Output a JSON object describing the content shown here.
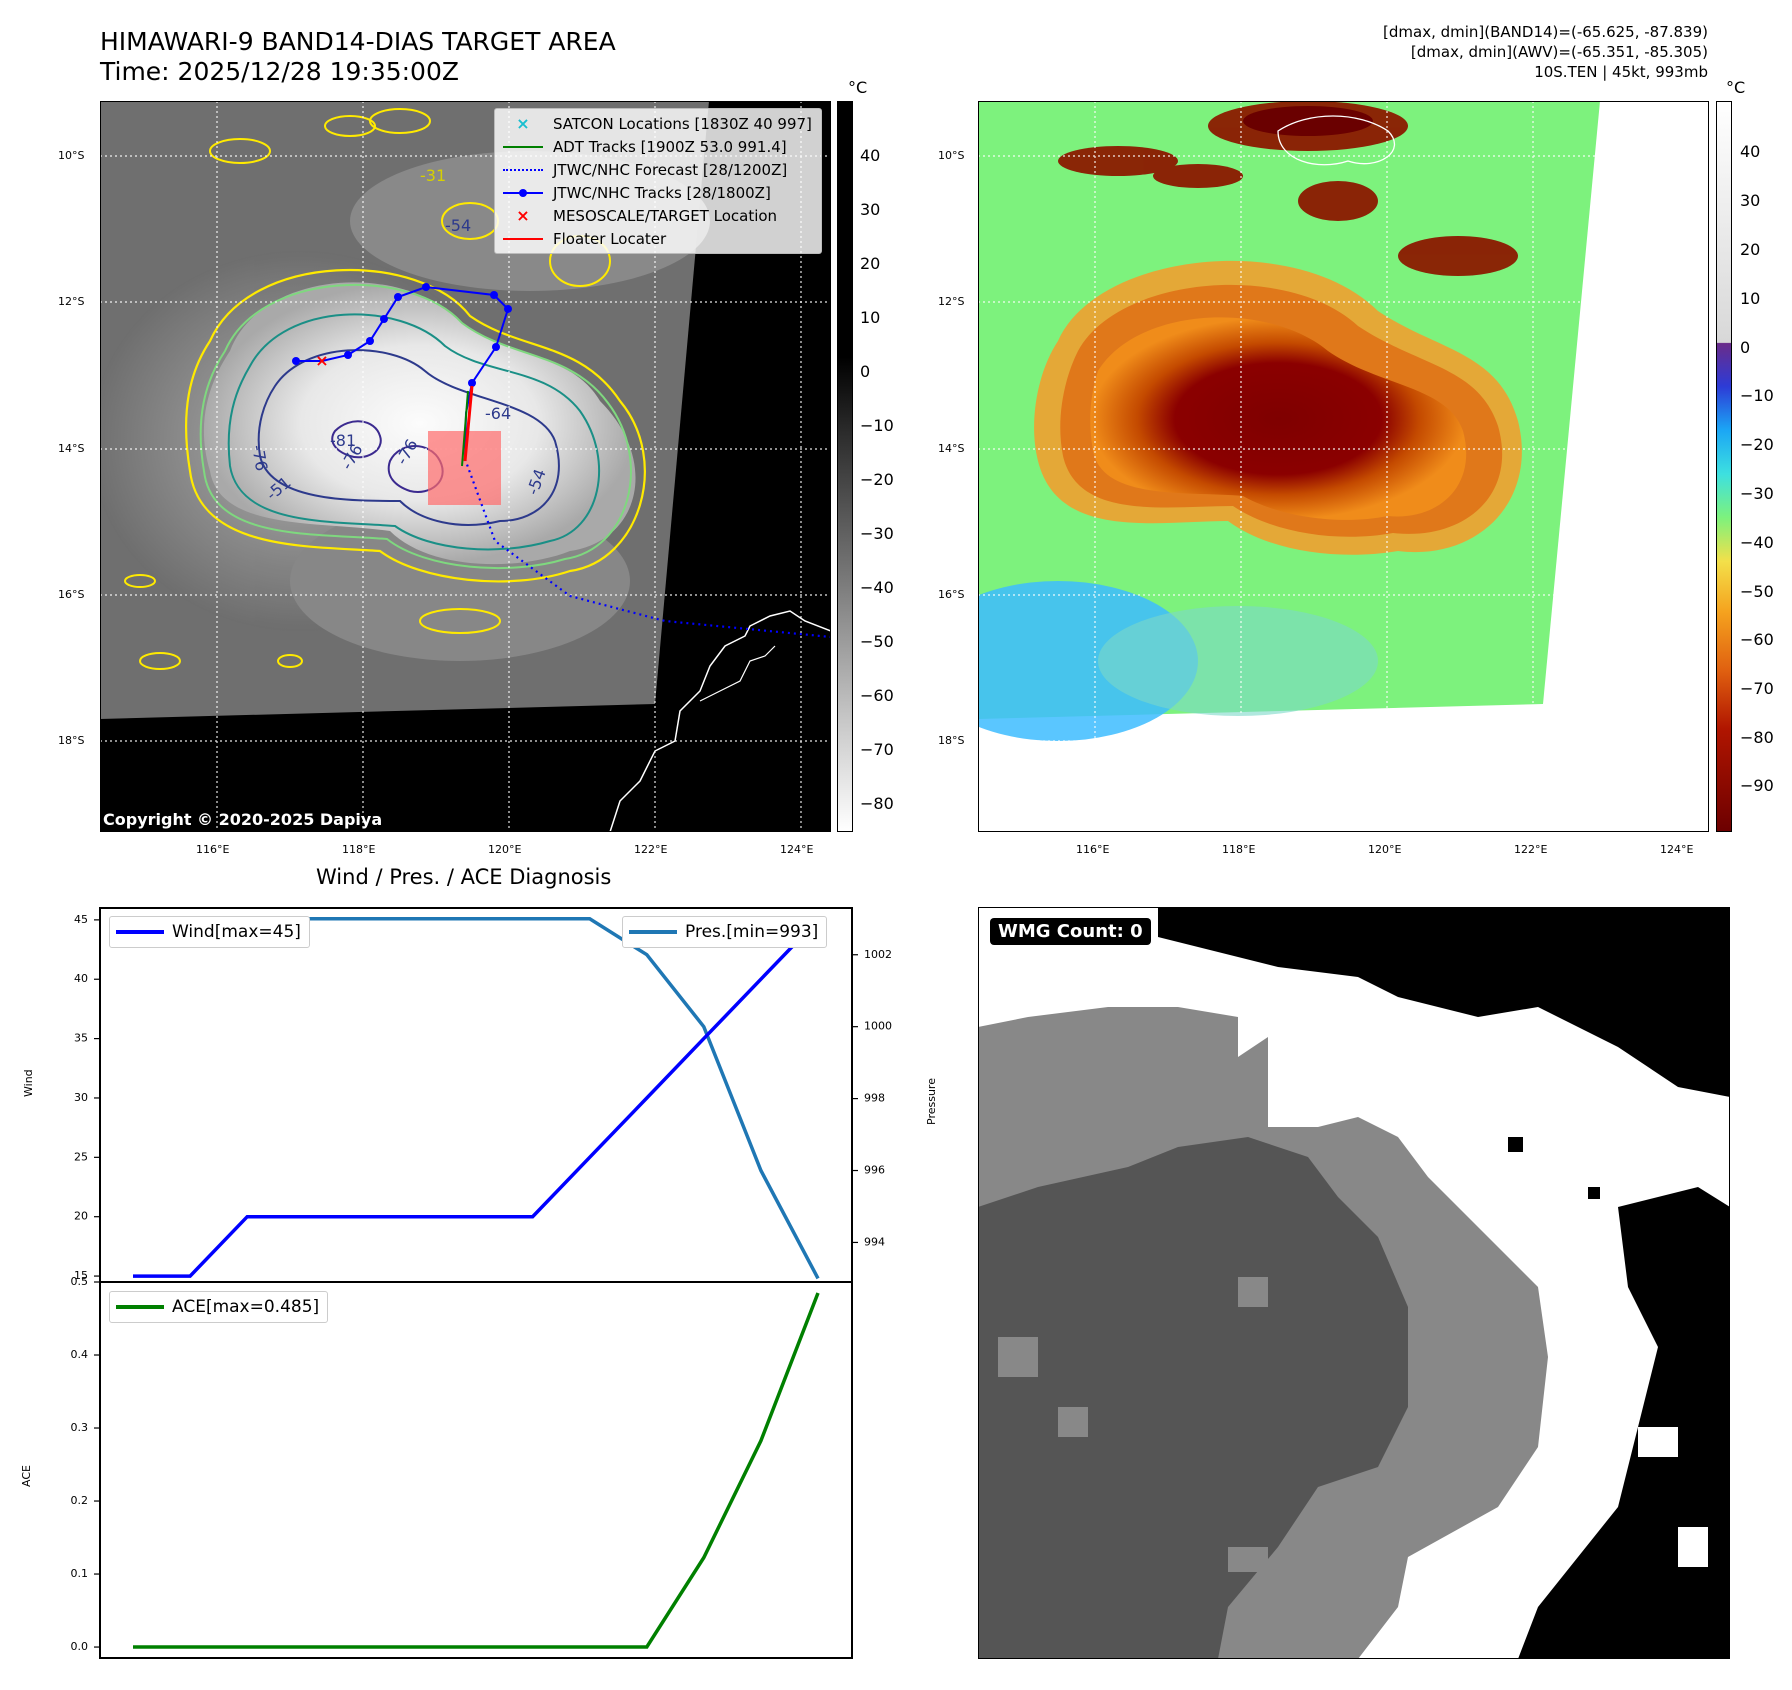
{
  "header": {
    "title": "HIMAWARI-9 BAND14-DIAS TARGET AREA",
    "time": "Time: 2025/12/28 19:35:00Z",
    "dmax_band14": "[dmax, dmin](BAND14)=(-65.625, -87.839)",
    "dmax_awv": "[dmax, dmin](AWV)=(-65.351, -85.305)",
    "storm": "10S.TEN | 45kt, 993mb"
  },
  "map_axes": {
    "lat_labels": [
      "10°S",
      "12°S",
      "14°S",
      "16°S",
      "18°S"
    ],
    "lon_labels": [
      "116°E",
      "118°E",
      "120°E",
      "122°E",
      "124°E"
    ]
  },
  "ir_panel": {
    "legend": [
      {
        "label": "SATCON Locations [1830Z 40 997]",
        "marker": "x",
        "color": "#17becf"
      },
      {
        "label": "ADT Tracks [1900Z 53.0 991.4]",
        "marker": "line",
        "color": "#008000"
      },
      {
        "label": "JTWC/NHC Forecast [28/1200Z]",
        "marker": "dotted",
        "color": "#0000ff"
      },
      {
        "label": "JTWC/NHC Tracks [28/1800Z]",
        "marker": "line-dot",
        "color": "#0000ff"
      },
      {
        "label": "MESOSCALE/TARGET Location",
        "marker": "x",
        "color": "#ff0000"
      },
      {
        "label": "Floater Locater",
        "marker": "line",
        "color": "#ff0000"
      }
    ],
    "contour_labels": [
      "-76",
      "-81",
      "-76",
      "-76",
      "-64",
      "-54",
      "-31",
      "-54",
      "-51"
    ],
    "copyright": "Copyright © 2020-2025 Dapiya",
    "colorbar_unit": "°C",
    "colorbar_ticks": [
      "40",
      "30",
      "20",
      "10",
      "0",
      "−10",
      "−20",
      "−30",
      "−40",
      "−50",
      "−60",
      "−70",
      "−80"
    ]
  },
  "awv_panel": {
    "colorbar_unit": "°C",
    "colorbar_ticks": [
      "40",
      "30",
      "20",
      "10",
      "0",
      "−10",
      "−20",
      "−30",
      "−40",
      "−50",
      "−60",
      "−70",
      "−80",
      "−90"
    ]
  },
  "diagnosis": {
    "title": "Wind / Pres. / ACE Diagnosis",
    "wind_legend": "Wind[max=45]",
    "pres_legend": "Pres.[min=993]",
    "ace_legend": "ACE[max=0.485]",
    "wind_ylabel": "Wind",
    "pres_ylabel": "Pressure",
    "ace_ylabel": "ACE",
    "colors": {
      "wind": "#0000ff",
      "pressure": "#1f77b4",
      "ace": "#008000"
    }
  },
  "wmg": {
    "badge": "WMG Count: 0"
  },
  "chart_data": [
    {
      "type": "line",
      "title": "Wind / Pres. / ACE Diagnosis",
      "x": [
        0,
        1,
        2,
        3,
        4,
        5,
        6,
        7,
        8,
        9,
        10,
        11,
        12
      ],
      "series": [
        {
          "name": "Wind",
          "axis": "left",
          "values": [
            15,
            15,
            20,
            20,
            20,
            20,
            20,
            20,
            25,
            30,
            35,
            40,
            45
          ]
        },
        {
          "name": "Pressure",
          "axis": "right",
          "values": [
            1003,
            1003,
            1003,
            1003,
            1003,
            1003,
            1003,
            1003,
            1003,
            1002,
            1000,
            996,
            993
          ]
        }
      ],
      "ylabel": "Wind",
      "y2label": "Pressure",
      "ylim": [
        14.5,
        46.0
      ],
      "y2lim": [
        992.9,
        1003.3
      ],
      "yticks": [
        15,
        20,
        25,
        30,
        35,
        40,
        45
      ],
      "y2ticks": [
        994,
        996,
        998,
        1000,
        1002
      ],
      "legend": [
        "Wind[max=45]",
        "Pres.[min=993]"
      ]
    },
    {
      "type": "line",
      "x": [
        0,
        1,
        2,
        3,
        4,
        5,
        6,
        7,
        8,
        9,
        10,
        11,
        12
      ],
      "series": [
        {
          "name": "ACE",
          "values": [
            0,
            0,
            0,
            0,
            0,
            0,
            0,
            0,
            0,
            0,
            0.1225,
            0.2825,
            0.485
          ]
        }
      ],
      "ylabel": "ACE",
      "ylim": [
        -0.015,
        0.5
      ],
      "yticks": [
        0.0,
        0.1,
        0.2,
        0.3,
        0.4,
        0.5
      ],
      "legend": [
        "ACE[max=0.485]"
      ]
    }
  ]
}
